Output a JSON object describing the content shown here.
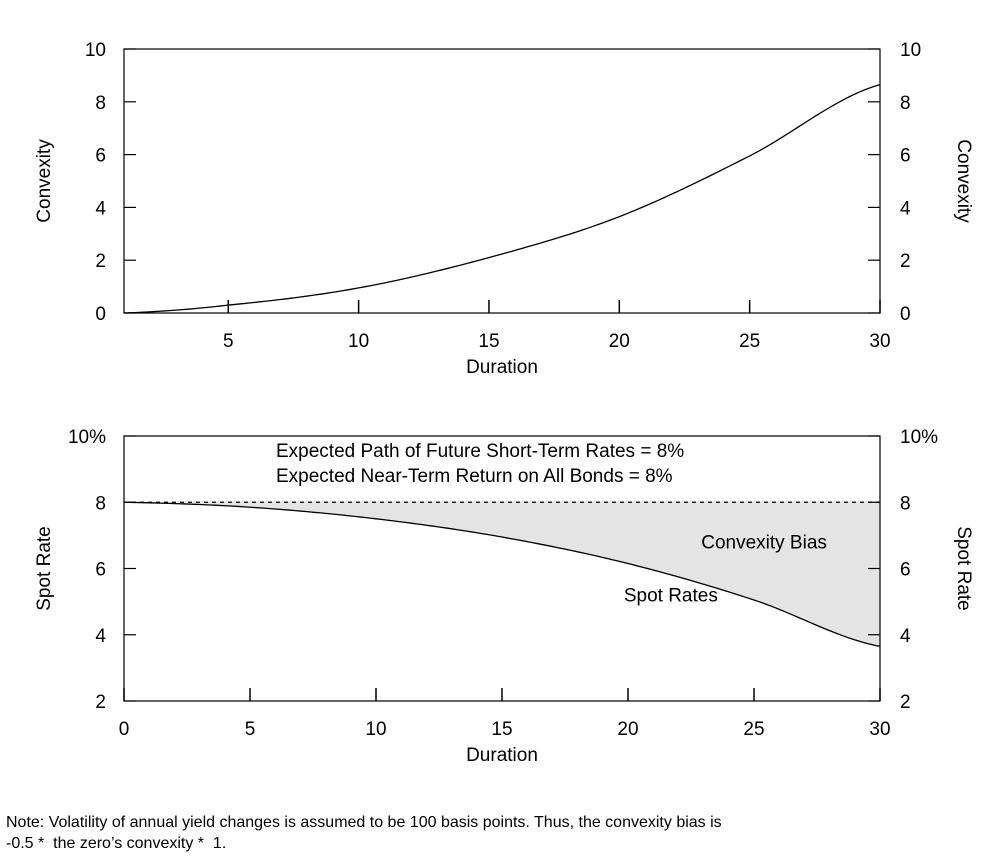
{
  "chart_data": [
    {
      "type": "line",
      "xlabel": "Duration",
      "ylabel": "Convexity",
      "ylabel_right": "Convexity",
      "xlim": [
        1,
        30
      ],
      "ylim": [
        0,
        10
      ],
      "xticks": [
        5,
        10,
        15,
        20,
        25,
        30
      ],
      "yticks": [
        0,
        2,
        4,
        6,
        8,
        10
      ],
      "ytick_labels": [
        "0",
        "2",
        "4",
        "6",
        "8",
        "10"
      ],
      "ytick_labels_right": [
        "0",
        "2",
        "4",
        "6",
        "8",
        "10"
      ],
      "grid": false,
      "series": [
        {
          "x": [
            1,
            5,
            10,
            15,
            20,
            25,
            30
          ],
          "y": [
            0.0,
            0.3,
            0.95,
            2.1,
            3.65,
            5.95,
            8.65
          ]
        }
      ]
    },
    {
      "type": "area",
      "xlabel": "Duration",
      "ylabel": "Spot Rate",
      "ylabel_right": "Spot Rate",
      "xlim": [
        0,
        30
      ],
      "ylim": [
        2,
        10
      ],
      "xticks": [
        0,
        5,
        10,
        15,
        20,
        25,
        30
      ],
      "yticks": [
        2,
        4,
        6,
        8,
        10
      ],
      "ytick_labels": [
        "2",
        "4",
        "6",
        "8",
        "10%"
      ],
      "ytick_labels_right": [
        "2",
        "4",
        "6",
        "8",
        "10%"
      ],
      "grid": false,
      "title_lines": [
        "Expected Path of Future Short-Term Rates = 8%",
        "Expected Near-Term Return on All Bonds = 8%"
      ],
      "series": [
        {
          "style": "dashed",
          "x": [
            0,
            30
          ],
          "y": [
            8,
            8
          ]
        },
        {
          "x": [
            0,
            5,
            10,
            15,
            20,
            25,
            30
          ],
          "y": [
            8.0,
            7.85,
            7.5,
            6.95,
            6.15,
            5.05,
            3.65
          ]
        }
      ],
      "shaded_region_between": [
        0,
        1
      ],
      "annotations": [
        {
          "text": "Convexity Bias",
          "x": 25.4,
          "y": 6.6
        },
        {
          "text": "Spot Rates",
          "x": 21.7,
          "y": 5.0
        }
      ]
    }
  ],
  "note": {
    "line1": "Note: Volatility of annual yield changes is assumed to be 100 basis points. Thus, the convexity bias is",
    "line2": "-0.5 *  the zero’s convexity *  1."
  },
  "colors": {
    "axis": "#000000",
    "line": "#000000",
    "shade": "#e4e4e4"
  }
}
